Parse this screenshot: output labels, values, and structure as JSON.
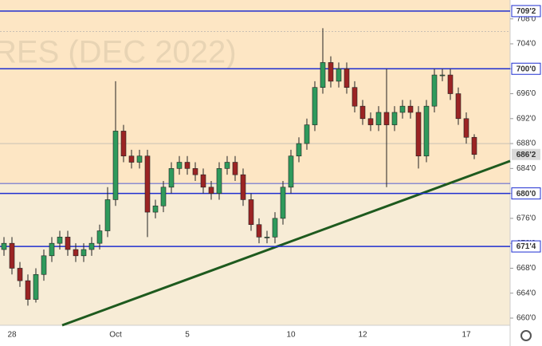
{
  "chart_data": {
    "type": "candlestick",
    "watermark": "RES (DEC 2022)",
    "categories": [
      null,
      "28",
      null,
      null,
      null,
      null,
      null,
      null,
      null,
      null,
      null,
      null,
      null,
      null,
      "Oct",
      null,
      null,
      null,
      null,
      null,
      null,
      null,
      null,
      "5",
      null,
      null,
      null,
      null,
      null,
      null,
      null,
      null,
      null,
      null,
      null,
      null,
      "10",
      null,
      null,
      null,
      null,
      null,
      null,
      null,
      null,
      "12",
      null,
      null,
      null,
      null,
      null,
      null,
      null,
      null,
      null,
      null,
      null,
      null,
      "17",
      null
    ],
    "open": [
      671,
      672,
      668,
      666,
      663,
      667,
      670,
      672,
      673,
      671,
      670,
      671,
      672,
      674,
      679,
      690,
      686,
      685,
      686,
      677,
      678,
      681,
      684,
      685,
      684,
      683,
      681,
      680,
      684,
      685,
      683,
      679,
      675,
      673,
      673,
      676,
      681,
      686,
      688,
      691,
      697,
      701,
      698,
      700,
      697,
      694,
      692,
      691,
      693,
      691,
      693,
      694,
      693,
      686,
      694,
      699,
      699,
      696,
      692,
      689
    ],
    "high": [
      673,
      673,
      669,
      667,
      668,
      671,
      673,
      674,
      674,
      672,
      672,
      673,
      675,
      681,
      698,
      691,
      687,
      687,
      687,
      679,
      682,
      685,
      686,
      686,
      685,
      684,
      682,
      685,
      686,
      686,
      684,
      680,
      676,
      674,
      677,
      682,
      687,
      689,
      692,
      698,
      706.5,
      702,
      701,
      701,
      698,
      695,
      693,
      694,
      700,
      694,
      695,
      695,
      694,
      695,
      700,
      700,
      700,
      697,
      693,
      689.5
    ],
    "low": [
      670,
      667,
      665,
      662,
      662.5,
      666,
      669,
      671,
      670,
      669,
      669,
      670,
      671,
      673,
      678,
      685,
      684,
      684,
      673,
      676,
      677,
      680,
      683,
      683,
      682,
      680,
      679,
      679,
      683,
      682,
      678,
      674,
      672,
      672,
      672,
      675,
      680,
      685,
      687,
      690,
      696,
      697,
      697,
      696,
      693,
      691,
      690,
      690,
      681,
      690,
      692,
      692,
      684,
      685,
      693,
      698,
      695,
      691,
      688,
      685.5
    ],
    "close": [
      672,
      668,
      666,
      663,
      667,
      670,
      672,
      673,
      671,
      670,
      671,
      672,
      674,
      679,
      690,
      686,
      685,
      686,
      677,
      678,
      681,
      684,
      685,
      684,
      683,
      681,
      680,
      684,
      685,
      683,
      679,
      675,
      673,
      673,
      676,
      681,
      686,
      688,
      691,
      697,
      701,
      698,
      700,
      697,
      694,
      692,
      691,
      693,
      691,
      693,
      694,
      693,
      686,
      694,
      699,
      699,
      696,
      692,
      689,
      686.25
    ],
    "up_color": "#2f9a5c",
    "down_color": "#9b2424",
    "ylim": [
      658.85,
      711.03
    ],
    "yticks": [
      {
        "value": 660,
        "label": "660'0"
      },
      {
        "value": 664,
        "label": "664'0"
      },
      {
        "value": 668,
        "label": "668'0"
      },
      {
        "value": 672,
        "label": "672'0"
      },
      {
        "value": 676,
        "label": "676'0"
      },
      {
        "value": 680,
        "label": "680'0"
      },
      {
        "value": 684,
        "label": "684'0"
      },
      {
        "value": 688,
        "label": "688'0"
      },
      {
        "value": 692,
        "label": "692'0"
      },
      {
        "value": 696,
        "label": "696'0"
      },
      {
        "value": 700,
        "label": "700'0"
      },
      {
        "value": 704,
        "label": "704'0"
      },
      {
        "value": 708,
        "label": "708'0"
      }
    ],
    "levels": [
      {
        "value": 709.25,
        "label": "709'2"
      },
      {
        "value": 700,
        "label": "700'0"
      },
      {
        "value": 680,
        "label": "680'0"
      },
      {
        "value": 671.5,
        "label": "671'4"
      }
    ],
    "level_color": "#1f2fd0",
    "guide_lines": [
      706,
      688,
      681.6
    ],
    "price_marker": {
      "value": 686.25,
      "label": "686'2"
    },
    "trendline": {
      "from": [
        7.3,
        658.85
      ],
      "to": [
        63.5,
        685.2
      ],
      "color": "#1e5a1e"
    }
  }
}
